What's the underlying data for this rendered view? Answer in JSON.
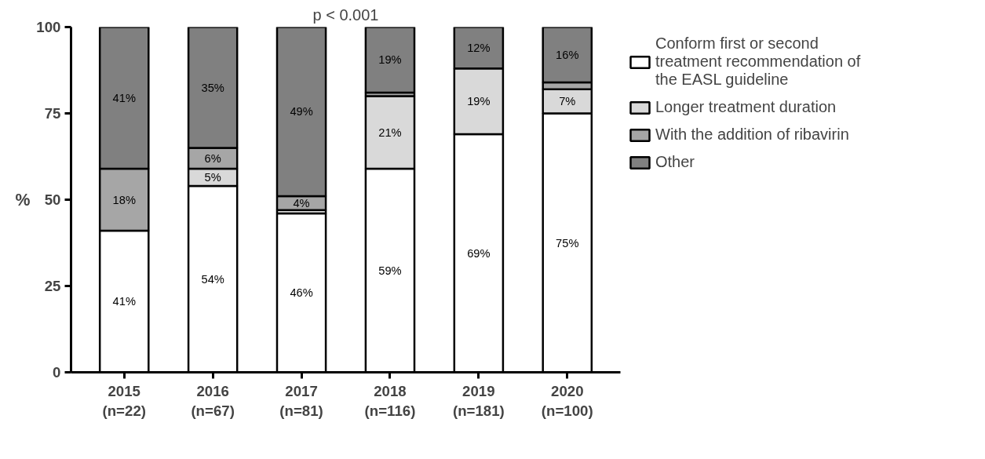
{
  "chart_data": {
    "type": "bar",
    "title": "p < 0.001",
    "ylabel": "%",
    "categories": [
      "2015\n(n=22)",
      "2016\n(n=67)",
      "2017\n(n=81)",
      "2018\n(n=116)",
      "2019\n(n=181)",
      "2020\n(n=100)"
    ],
    "stacked": true,
    "ylim": [
      0,
      100
    ],
    "yticks": [
      0,
      25,
      50,
      75,
      100
    ],
    "grid": false,
    "legend": "right",
    "series": [
      {
        "name": "Conform first or second treatment recommendation of the EASL guideline",
        "color": "#ffffff",
        "values": [
          41,
          54,
          46,
          59,
          69,
          75
        ],
        "value_labels": [
          "41%",
          "54%",
          "46%",
          "59%",
          "69%",
          "75%"
        ]
      },
      {
        "name": "Longer treatment duration",
        "color": "#d9d9d9",
        "values": [
          0,
          5,
          1,
          21,
          19,
          7
        ],
        "value_labels": [
          null,
          "5%",
          null,
          "21%",
          "19%",
          "7%"
        ]
      },
      {
        "name": "With the addition of ribavirin",
        "color": "#a6a6a6",
        "values": [
          18,
          6,
          4,
          1,
          0,
          2
        ],
        "value_labels": [
          "18%",
          "6%",
          "4%",
          null,
          null,
          null
        ]
      },
      {
        "name": "Other",
        "color": "#808080",
        "values": [
          41,
          35,
          49,
          19,
          12,
          16
        ],
        "value_labels": [
          "41%",
          "35%",
          "49%",
          "19%",
          "12%",
          "16%"
        ]
      }
    ]
  }
}
